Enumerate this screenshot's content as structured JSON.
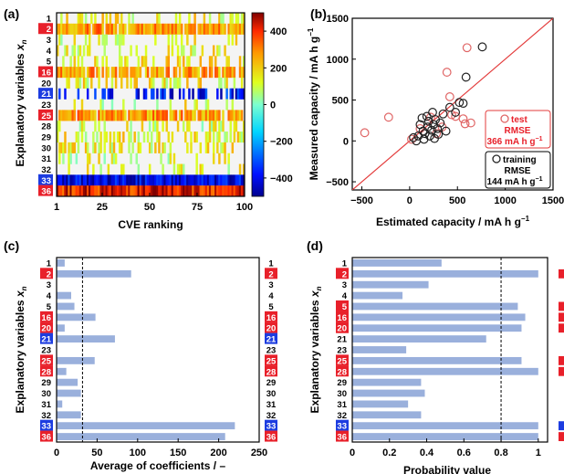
{
  "panels": {
    "a": {
      "label": "(a)"
    },
    "b": {
      "label": "(b)"
    },
    "c": {
      "label": "(c)"
    },
    "d": {
      "label": "(d)"
    }
  },
  "colors": {
    "red": "#e8202a",
    "blue": "#1c3ce0",
    "bar": "#9ab0dc",
    "diag": "#e33b3b",
    "test": "#e06666"
  },
  "chart_data": [
    {
      "type": "heatmap",
      "panel": "(a)",
      "xlabel": "CVE ranking",
      "ylabel_main": "Explanatory variables ",
      "ylabel_sub": "n",
      "ylabel_x": "x",
      "xticks": [
        "1",
        "25",
        "50",
        "75",
        "100"
      ],
      "xlim": [
        1,
        100
      ],
      "variables": [
        "1",
        "2",
        "3",
        "4",
        "5",
        "16",
        "20",
        "21",
        "23",
        "25",
        "28",
        "29",
        "30",
        "31",
        "32",
        "33",
        "36"
      ],
      "highlight": {
        "2": "red",
        "16": "red",
        "21": "blue",
        "25": "red",
        "33": "blue",
        "36": "red"
      },
      "colorbar": {
        "ticks": [
          "400",
          "200",
          "0",
          "−200",
          "−400"
        ],
        "range": [
          -500,
          500
        ]
      }
    },
    {
      "type": "scatter",
      "panel": "(b)",
      "xlabel": "Estimated capacity / mA h g",
      "xlabel_sup": "−1",
      "ylabel": "Measured capacity / mA h g",
      "ylabel_sup": "−1",
      "xlim": [
        -600,
        1500
      ],
      "ylim": [
        -600,
        1500
      ],
      "xticks": [
        "−500",
        "0",
        "500",
        "1000",
        "1500"
      ],
      "yticks": [
        "−500",
        "0",
        "500",
        "1000",
        "1500"
      ],
      "legend": {
        "test": {
          "name": "test",
          "rmse_label": "RMSE",
          "rmse": "366 mA h g",
          "sup": "−1"
        },
        "training": {
          "name": "training",
          "rmse_label": "RMSE",
          "rmse": "144 mA h g",
          "sup": "−1"
        }
      },
      "series": [
        {
          "name": "test",
          "points": [
            [
              -470,
              100
            ],
            [
              -220,
              290
            ],
            [
              20,
              20
            ],
            [
              110,
              150
            ],
            [
              220,
              290
            ],
            [
              280,
              90
            ],
            [
              340,
              170
            ],
            [
              390,
              840
            ],
            [
              420,
              540
            ],
            [
              440,
              320
            ],
            [
              480,
              300
            ],
            [
              560,
              270
            ],
            [
              580,
              210
            ],
            [
              600,
              1140
            ],
            [
              640,
              220
            ]
          ]
        },
        {
          "name": "training",
          "points": [
            [
              40,
              40
            ],
            [
              70,
              0
            ],
            [
              90,
              60
            ],
            [
              110,
              200
            ],
            [
              130,
              280
            ],
            [
              140,
              120
            ],
            [
              150,
              20
            ],
            [
              160,
              90
            ],
            [
              180,
              300
            ],
            [
              190,
              170
            ],
            [
              200,
              240
            ],
            [
              210,
              60
            ],
            [
              230,
              130
            ],
            [
              240,
              350
            ],
            [
              250,
              200
            ],
            [
              260,
              30
            ],
            [
              270,
              260
            ],
            [
              290,
              150
            ],
            [
              300,
              80
            ],
            [
              320,
              220
            ],
            [
              350,
              330
            ],
            [
              380,
              120
            ],
            [
              420,
              410
            ],
            [
              480,
              350
            ],
            [
              520,
              470
            ],
            [
              560,
              460
            ],
            [
              590,
              780
            ],
            [
              760,
              1150
            ]
          ]
        }
      ]
    },
    {
      "type": "bar",
      "orientation": "horizontal",
      "panel": "(c)",
      "xlabel": "Average of coefficients / –",
      "ylabel_main": "Explanatory variables ",
      "ylabel_sub": "n",
      "ylabel_x": "x",
      "categories": [
        "1",
        "2",
        "3",
        "4",
        "5",
        "16",
        "20",
        "21",
        "23",
        "25",
        "28",
        "29",
        "30",
        "31",
        "32",
        "33",
        "36"
      ],
      "values": [
        10,
        92,
        0,
        18,
        22,
        48,
        10,
        72,
        0,
        47,
        12,
        26,
        30,
        7,
        30,
        220,
        208
      ],
      "xlim": [
        0,
        250
      ],
      "xticks": [
        "0",
        "50",
        "100",
        "150",
        "200",
        "250"
      ],
      "dashed_line": 32,
      "highlight": {
        "2": "red",
        "16": "red",
        "20": "red",
        "21": "blue",
        "25": "red",
        "28": "red",
        "33": "blue",
        "36": "red"
      }
    },
    {
      "type": "bar",
      "orientation": "horizontal",
      "panel": "(d)",
      "xlabel": "Probability value",
      "ylabel_main": "Explanatory variables ",
      "ylabel_sub": "n",
      "ylabel_x": "x",
      "categories": [
        "1",
        "2",
        "3",
        "4",
        "5",
        "16",
        "20",
        "21",
        "23",
        "25",
        "28",
        "29",
        "30",
        "31",
        "32",
        "33",
        "36"
      ],
      "values": [
        0.48,
        1.0,
        0.41,
        0.27,
        0.89,
        0.93,
        0.91,
        0.72,
        0.29,
        0.91,
        1.0,
        0.37,
        0.39,
        0.3,
        0.37,
        1.0,
        1.0
      ],
      "xlim": [
        0,
        1.05
      ],
      "xticks": [
        "0",
        "0.2",
        "0.4",
        "0.6",
        "0.8",
        "1"
      ],
      "dashed_line": 0.8,
      "highlight": {
        "2": "red",
        "5": "red",
        "16": "red",
        "20": "red",
        "25": "red",
        "28": "red",
        "33": "blue",
        "36": "red"
      }
    }
  ]
}
